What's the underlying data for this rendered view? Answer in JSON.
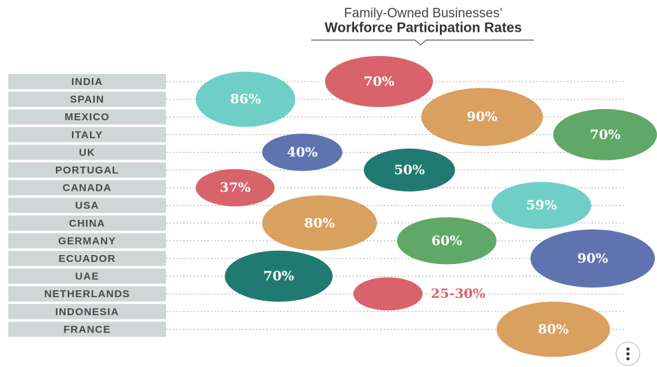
{
  "chart_data": {
    "type": "bubble",
    "title": "Family-Owned Businesses’",
    "subtitle": "Workforce Participation Rates",
    "categories": [
      "INDIA",
      "SPAIN",
      "MEXICO",
      "ITALY",
      "UK",
      "PORTUGAL",
      "CANADA",
      "USA",
      "CHINA",
      "GERMANY",
      "ECUADOR",
      "UAE",
      "NETHERLANDS",
      "INDONESIA",
      "FRANCE"
    ],
    "values": [
      70,
      86,
      90,
      70,
      40,
      50,
      37,
      59,
      80,
      60,
      90,
      70,
      null,
      null,
      80
    ],
    "value_labels": [
      "70%",
      "86%",
      "90%",
      "70%",
      "40%",
      "50%",
      "37%",
      "59%",
      "80%",
      "60%",
      "90%",
      "70%",
      "25-30%",
      null,
      "80%"
    ],
    "colors": [
      "#d9636a",
      "#6fcfc7",
      "#d9a05f",
      "#5fa867",
      "#5f73b0",
      "#217a72",
      "#d9636a",
      "#6fcfc7",
      "#d9a05f",
      "#5fa867",
      "#5f73b0",
      "#217a72",
      "#d9636a",
      null,
      "#d9a05f"
    ]
  }
}
